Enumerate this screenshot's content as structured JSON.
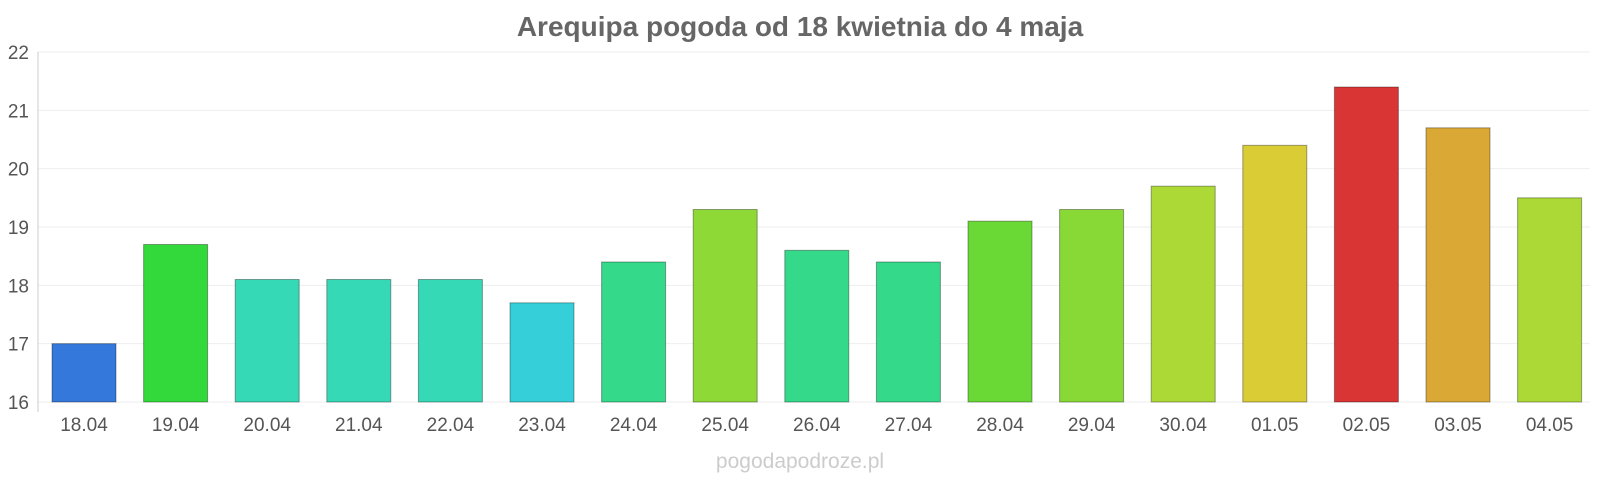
{
  "chart_data": {
    "type": "bar",
    "title": "Arequipa pogoda od 18 kwietnia do 4 maja",
    "xlabel": "",
    "ylabel": "",
    "ylim": [
      16,
      22
    ],
    "yticks": [
      16,
      17,
      18,
      19,
      20,
      21,
      22
    ],
    "grid": true,
    "categories": [
      "18.04",
      "19.04",
      "20.04",
      "21.04",
      "22.04",
      "23.04",
      "24.04",
      "25.04",
      "26.04",
      "27.04",
      "28.04",
      "29.04",
      "30.04",
      "01.05",
      "02.05",
      "03.05",
      "04.05"
    ],
    "values": [
      17.0,
      18.7,
      18.1,
      18.1,
      18.1,
      17.7,
      18.4,
      19.3,
      18.6,
      18.4,
      19.1,
      19.3,
      19.7,
      20.4,
      21.4,
      20.7,
      19.5
    ],
    "colors": [
      "#3578db",
      "#33d93a",
      "#35d9b6",
      "#35d9b6",
      "#35d9b6",
      "#35cfd9",
      "#35d98a",
      "#8ed935",
      "#35d98a",
      "#35d98a",
      "#6ad935",
      "#88d935",
      "#acd935",
      "#d9cc35",
      "#d93535",
      "#d9a835",
      "#acd935"
    ]
  },
  "watermark": "pogodapodroze.pl"
}
